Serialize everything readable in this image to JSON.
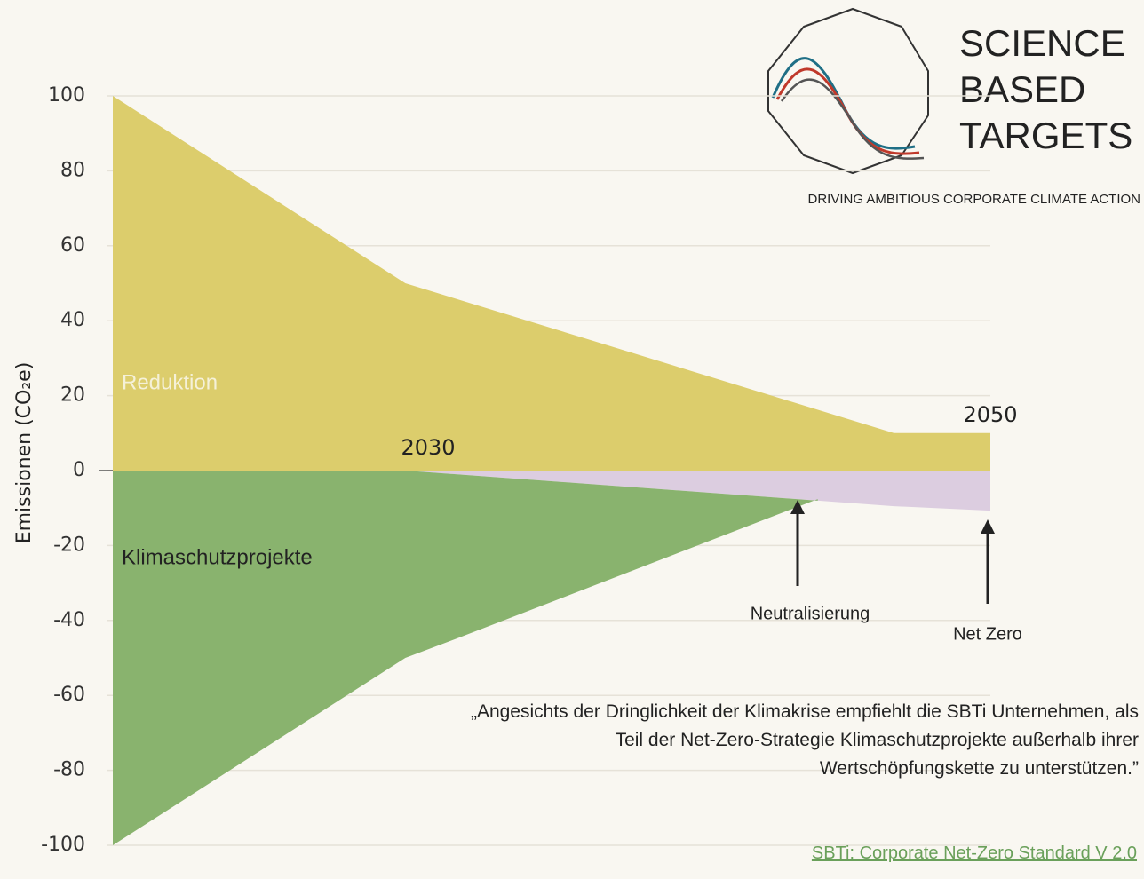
{
  "chart_data": {
    "type": "area",
    "y_label": "Emissionen (CO₂e)",
    "xlim": [
      2020,
      2050
    ],
    "ylim": [
      -100,
      100
    ],
    "yticks": [
      100,
      80,
      60,
      40,
      20,
      0,
      -20,
      -40,
      -60,
      -80,
      -100
    ],
    "grid": true,
    "series": [
      {
        "name": "Reduktion",
        "color": "#dccd6c",
        "x": [
          2020,
          2030,
          2046.7,
          2050
        ],
        "values": [
          100,
          50,
          10,
          10
        ]
      },
      {
        "color": "#dccde0",
        "x": [
          2030,
          2046.7,
          2050
        ],
        "values": [
          0,
          -9.5,
          -10.7
        ]
      },
      {
        "name": "Klimaschutzprojekte",
        "color": "#89b36e",
        "x": [
          2020,
          2030,
          2031.7,
          2044.1
        ],
        "values": [
          -100,
          -50,
          -45,
          -7.6
        ]
      }
    ],
    "annotations": [
      "2030",
      "2050",
      "Neutralisierung",
      "Net Zero"
    ],
    "quote": "„Angesichts der Dringlichkeit der Klimakrise empfiehlt die SBTi Unternehmen, als Teil der Net-Zero-Strategie Klimaschutzprojekte außerhalb ihrer Wertschöpfungskette zu unterstützen.”",
    "source": "SBTi: Corporate Net-Zero Standard V 2.0",
    "logo": {
      "lines": [
        "SCIENCE",
        "BASED",
        "TARGETS"
      ],
      "tagline": "DRIVING AMBITIOUS CORPORATE CLIMATE ACTION"
    }
  }
}
